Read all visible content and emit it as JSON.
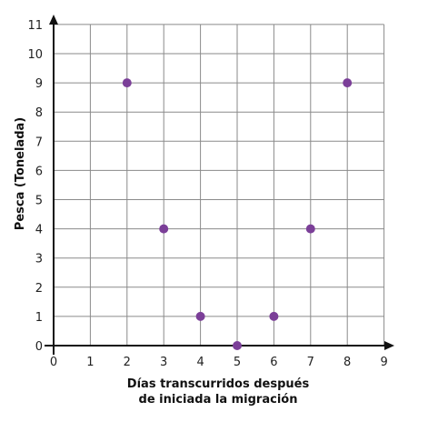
{
  "chart_data": {
    "type": "scatter",
    "title": "",
    "xlabel": [
      "Días transcurridos después",
      "de iniciada la migración"
    ],
    "ylabel": "Pesca (Tonelada)",
    "xlim": [
      0,
      9
    ],
    "ylim": [
      0,
      11
    ],
    "xticks": [
      0,
      1,
      2,
      3,
      4,
      5,
      6,
      7,
      8,
      9
    ],
    "yticks": [
      0,
      1,
      2,
      3,
      4,
      5,
      6,
      7,
      8,
      9,
      10,
      11
    ],
    "grid": true,
    "point_color": "#7b3f98",
    "points": [
      {
        "x": 2,
        "y": 9
      },
      {
        "x": 3,
        "y": 4
      },
      {
        "x": 4,
        "y": 1
      },
      {
        "x": 5,
        "y": 0
      },
      {
        "x": 6,
        "y": 1
      },
      {
        "x": 7,
        "y": 4
      },
      {
        "x": 8,
        "y": 9
      }
    ]
  }
}
